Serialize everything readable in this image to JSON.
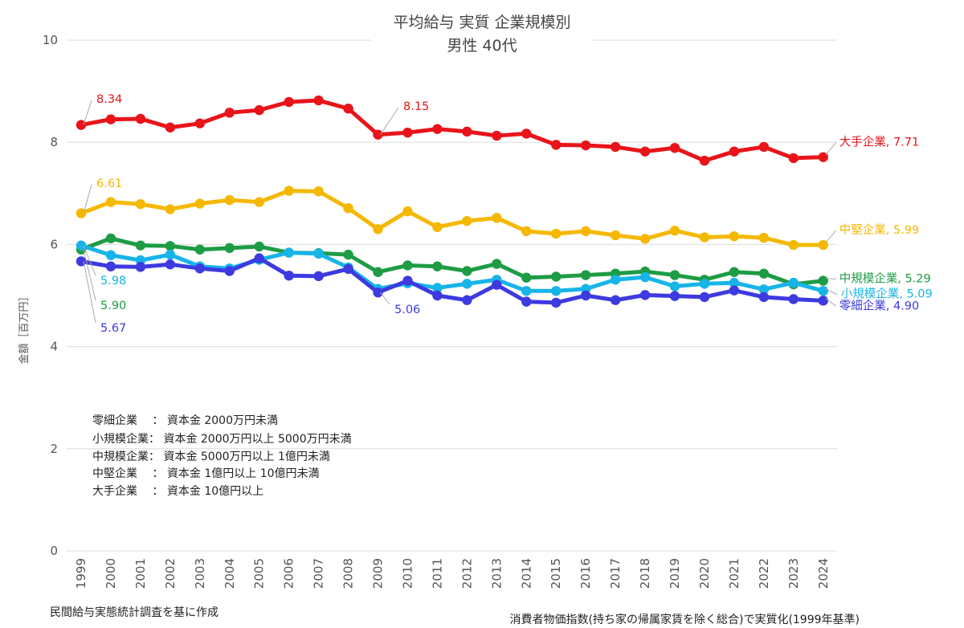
{
  "chart_data": {
    "type": "line",
    "title": "平均給与 実質 企業規模別",
    "subtitle": "男性 40代",
    "ylabel": "金額［百万円］",
    "ylim": [
      0,
      10
    ],
    "y_ticks": [
      "0",
      "2",
      "4",
      "6",
      "8",
      "10"
    ],
    "grid": true,
    "legend_placement": "right-end-labels",
    "x": [
      "1999",
      "2000",
      "2001",
      "2002",
      "2003",
      "2004",
      "2005",
      "2006",
      "2007",
      "2008",
      "2009",
      "2010",
      "2011",
      "2012",
      "2013",
      "2014",
      "2015",
      "2016",
      "2017",
      "2018",
      "2019",
      "2020",
      "2021",
      "2022",
      "2023",
      "2024"
    ],
    "series": [
      {
        "name": "大手企業",
        "color": "#e8141a",
        "end_label": "大手企業, 7.71",
        "values": [
          8.34,
          8.45,
          8.46,
          8.29,
          8.37,
          8.58,
          8.63,
          8.79,
          8.82,
          8.66,
          8.15,
          8.19,
          8.26,
          8.21,
          8.13,
          8.17,
          7.95,
          7.94,
          7.91,
          7.82,
          7.89,
          7.64,
          7.82,
          7.91,
          7.69,
          7.71
        ]
      },
      {
        "name": "中堅企業",
        "color": "#f5b800",
        "end_label": "中堅企業, 5.99",
        "values": [
          6.61,
          6.83,
          6.79,
          6.69,
          6.8,
          6.87,
          6.83,
          7.05,
          7.04,
          6.71,
          6.3,
          6.65,
          6.34,
          6.46,
          6.52,
          6.26,
          6.21,
          6.26,
          6.18,
          6.11,
          6.27,
          6.14,
          6.16,
          6.13,
          5.99,
          5.99
        ]
      },
      {
        "name": "中規模企業",
        "color": "#1e9c45",
        "end_label": "中規模企業, 5.29",
        "values": [
          5.9,
          6.12,
          5.98,
          5.97,
          5.9,
          5.93,
          5.96,
          5.84,
          5.83,
          5.8,
          5.46,
          5.59,
          5.57,
          5.48,
          5.62,
          5.35,
          5.37,
          5.4,
          5.43,
          5.47,
          5.4,
          5.31,
          5.46,
          5.43,
          5.22,
          5.29
        ]
      },
      {
        "name": "小規模企業",
        "color": "#17b4e8",
        "end_label": "小規模企業, 5.09",
        "values": [
          5.98,
          5.79,
          5.69,
          5.8,
          5.57,
          5.53,
          5.7,
          5.84,
          5.82,
          5.55,
          5.13,
          5.24,
          5.15,
          5.23,
          5.31,
          5.09,
          5.09,
          5.13,
          5.31,
          5.36,
          5.18,
          5.23,
          5.25,
          5.12,
          5.25,
          5.09
        ]
      },
      {
        "name": "零細企業",
        "color": "#3d3ae0",
        "end_label": "零細企業, 4.90",
        "values": [
          5.67,
          5.57,
          5.56,
          5.61,
          5.53,
          5.48,
          5.73,
          5.39,
          5.38,
          5.52,
          5.06,
          5.29,
          5.0,
          4.91,
          5.21,
          4.88,
          4.86,
          5.0,
          4.91,
          5.01,
          4.99,
          4.97,
          5.1,
          4.97,
          4.93,
          4.9
        ]
      }
    ],
    "annotations": [
      {
        "text": "8.34",
        "series": 0,
        "index": 0,
        "color": "#e8141a"
      },
      {
        "text": "8.15",
        "series": 0,
        "index": 10,
        "color": "#e8141a"
      },
      {
        "text": "6.61",
        "series": 1,
        "index": 0,
        "color": "#f5b800"
      },
      {
        "text": "5.98",
        "series": 3,
        "index": 0,
        "color": "#17b4e8"
      },
      {
        "text": "5.90",
        "series": 2,
        "index": 0,
        "color": "#1e9c45"
      },
      {
        "text": "5.67",
        "series": 4,
        "index": 0,
        "color": "#3d3ae0"
      },
      {
        "text": "5.06",
        "series": 4,
        "index": 10,
        "color": "#3d3ae0"
      }
    ]
  },
  "notes": [
    "零細企業　 ： 資本金 2000万円未満",
    "小規模企業： 資本金 2000万円以上 5000万円未満",
    "中規模企業： 資本金 5000万円以上 1億円未満",
    "中堅企業　 ： 資本金 1億円以上 10億円未満",
    "大手企業　 ： 資本金 10億円以上"
  ],
  "footer": {
    "left": "民間給与実態統計調査を基に作成",
    "right": "消費者物価指数(持ち家の帰属家賃を除く総合)で実質化(1999年基準)"
  }
}
